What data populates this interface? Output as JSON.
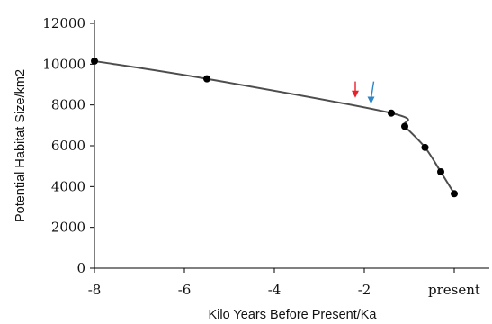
{
  "chart_data": {
    "type": "line",
    "title": "",
    "xlabel": "Kilo Years Before Present/Ka",
    "ylabel": "Potential Habitat Size/km2",
    "xlim": [
      -8,
      0
    ],
    "ylim": [
      0,
      12000
    ],
    "x_ticks": [
      {
        "value": -8,
        "label": "-8"
      },
      {
        "value": -6,
        "label": "-6"
      },
      {
        "value": -4,
        "label": "-4"
      },
      {
        "value": -2,
        "label": "-2"
      },
      {
        "value": 0,
        "label": "present"
      }
    ],
    "y_ticks": [
      {
        "value": 0,
        "label": "0"
      },
      {
        "value": 2000,
        "label": "2000"
      },
      {
        "value": 4000,
        "label": "4000"
      },
      {
        "value": 6000,
        "label": "6000"
      },
      {
        "value": 8000,
        "label": "8000"
      },
      {
        "value": 10000,
        "label": "10000"
      },
      {
        "value": 12000,
        "label": "12000"
      }
    ],
    "grid": false,
    "series": [
      {
        "color": "#4d4d4d",
        "marker_color": "#000000",
        "points": [
          {
            "x": -8.0,
            "y": 10150
          },
          {
            "x": -5.5,
            "y": 9280
          },
          {
            "x": -1.4,
            "y": 7600
          },
          {
            "x": -1.1,
            "y": 6950
          },
          {
            "x": -0.65,
            "y": 5920
          },
          {
            "x": -0.3,
            "y": 4720
          },
          {
            "x": 0.0,
            "y": 3650
          }
        ]
      }
    ],
    "annotations": [
      {
        "type": "arrow",
        "color": "#e8202a",
        "x": -2.2,
        "y_tip": 8350,
        "y_tail": 9150
      },
      {
        "type": "arrow",
        "color": "#2e86c8",
        "x": -1.85,
        "y_tip": 8050,
        "y_tail": 9150,
        "lean": true
      }
    ]
  }
}
